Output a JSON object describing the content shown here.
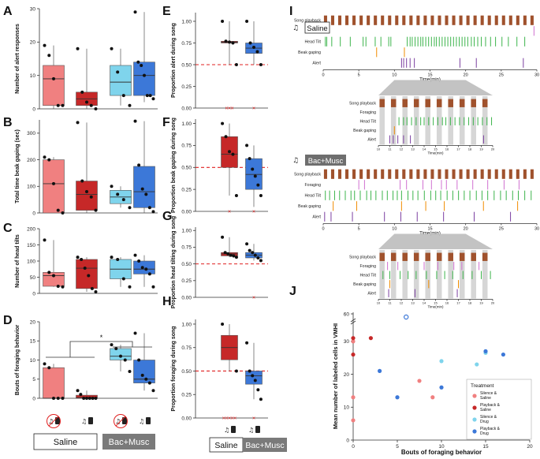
{
  "colors": {
    "silence_saline": "#f08080",
    "playback_saline": "#c62828",
    "silence_drug": "#7fd4ec",
    "playback_drug": "#3c78d8",
    "reference": "#e02020",
    "song": "#a0522d",
    "foraging": "#d070d0",
    "head_tilt": "#3cb44b",
    "beak_gaping": "#f08c00",
    "alert": "#7b3fa0"
  },
  "icons": {
    "silence": "crossed-note-speaker-icon",
    "playback": "note-speaker-icon"
  },
  "panels": {
    "A": "A",
    "B": "B",
    "C": "C",
    "D": "D",
    "E": "E",
    "F": "F",
    "G": "G",
    "H": "H",
    "I": "I",
    "J": "J"
  },
  "groups": {
    "saline": "Saline",
    "bac_musc": "Bac+Musc"
  },
  "chart_data": [
    {
      "panel": "A",
      "type": "box",
      "ylabel": "Number of alert responses",
      "ylim": [
        0,
        30
      ],
      "yticks": [
        0,
        10,
        20,
        30
      ],
      "groups": [
        {
          "treatment": "Silence & Saline",
          "q1": 1,
          "median": 9,
          "q3": 13,
          "whisker": [
            0,
            19
          ],
          "points": [
            19,
            16,
            9,
            1,
            1
          ]
        },
        {
          "treatment": "Playback & Saline",
          "q1": 1,
          "median": 3,
          "q3": 5,
          "whisker": [
            0,
            18
          ],
          "points": [
            18,
            5,
            2,
            1,
            0
          ]
        },
        {
          "treatment": "Silence & Drug",
          "q1": 4,
          "median": 8,
          "q3": 13,
          "whisker": [
            1,
            18
          ],
          "points": [
            18,
            11,
            4,
            1
          ]
        },
        {
          "treatment": "Playback & Drug",
          "q1": 4,
          "median": 10,
          "q3": 14,
          "whisker": [
            2,
            29
          ],
          "points": [
            29,
            14,
            13,
            10,
            4,
            4,
            3
          ]
        }
      ]
    },
    {
      "panel": "B",
      "type": "box",
      "ylabel": "Total time beak gaping (sec)",
      "ylim": [
        0,
        350
      ],
      "yticks": [
        0,
        100,
        200,
        300
      ],
      "groups": [
        {
          "treatment": "Silence & Saline",
          "q1": 0,
          "median": 110,
          "q3": 200,
          "whisker": [
            0,
            210
          ],
          "points": [
            210,
            200,
            110,
            10,
            0
          ]
        },
        {
          "treatment": "Playback & Saline",
          "q1": 10,
          "median": 70,
          "q3": 120,
          "whisker": [
            0,
            340
          ],
          "points": [
            340,
            120,
            80,
            60,
            10
          ]
        },
        {
          "treatment": "Silence & Drug",
          "q1": 35,
          "median": 60,
          "q3": 85,
          "whisker": [
            20,
            100
          ],
          "points": [
            100,
            70,
            50,
            20
          ]
        },
        {
          "treatment": "Playback & Drug",
          "q1": 20,
          "median": 80,
          "q3": 175,
          "whisker": [
            0,
            345
          ],
          "points": [
            345,
            180,
            90,
            70,
            20,
            5
          ]
        }
      ]
    },
    {
      "panel": "C",
      "type": "box",
      "ylabel": "Number of head tilts",
      "ylim": [
        0,
        200
      ],
      "yticks": [
        0,
        50,
        100,
        150,
        200
      ],
      "groups": [
        {
          "treatment": "Silence & Saline",
          "q1": 22,
          "median": 55,
          "q3": 65,
          "whisker": [
            20,
            165
          ],
          "points": [
            165,
            65,
            55,
            22,
            20
          ]
        },
        {
          "treatment": "Playback & Saline",
          "q1": 15,
          "median": 78,
          "q3": 105,
          "whisker": [
            5,
            112
          ],
          "points": [
            112,
            105,
            78,
            55,
            15,
            5
          ]
        },
        {
          "treatment": "Silence & Drug",
          "q1": 45,
          "median": 75,
          "q3": 105,
          "whisker": [
            20,
            112
          ],
          "points": [
            112,
            105,
            45,
            20
          ]
        },
        {
          "treatment": "Playback & Drug",
          "q1": 60,
          "median": 75,
          "q3": 100,
          "whisker": [
            20,
            118
          ],
          "points": [
            118,
            100,
            80,
            75,
            60,
            20
          ]
        }
      ]
    },
    {
      "panel": "D",
      "type": "box",
      "ylabel": "Bouts of foraging behavior",
      "ylim": [
        0,
        20
      ],
      "yticks": [
        0,
        5,
        10,
        15,
        20
      ],
      "significance": "*",
      "groups": [
        {
          "treatment": "Silence & Saline",
          "q1": 0,
          "median": 0,
          "q3": 8,
          "whisker": [
            0,
            9
          ],
          "points": [
            9,
            8,
            0,
            0,
            0
          ]
        },
        {
          "treatment": "Playback & Saline",
          "q1": 0,
          "median": 0.2,
          "q3": 0.8,
          "whisker": [
            0,
            2
          ],
          "points": [
            2,
            1,
            0,
            0,
            0,
            0,
            0
          ]
        },
        {
          "treatment": "Silence & Drug",
          "q1": 10,
          "median": 11,
          "q3": 13,
          "whisker": [
            7,
            14
          ],
          "points": [
            14,
            13,
            11,
            10,
            7
          ]
        },
        {
          "treatment": "Playback & Drug",
          "q1": 4,
          "median": 5,
          "q3": 10,
          "whisker": [
            2,
            17
          ],
          "points": [
            17,
            10,
            6,
            5,
            4,
            2
          ]
        }
      ]
    },
    {
      "panel": "E",
      "type": "box",
      "ylabel": "Proportion alert during song",
      "ylim": [
        0,
        1.1
      ],
      "yticks": [
        0.0,
        0.25,
        0.5,
        0.75,
        1.0
      ],
      "reference": 0.5,
      "groups": [
        {
          "treatment": "Playback & Saline",
          "q1": 0.75,
          "median": 0.76,
          "q3": 0.77,
          "whisker": [
            0.5,
            1.0
          ],
          "points": [
            1.0,
            0.77,
            0.76,
            0.75,
            0.5
          ],
          "excluded": 3
        },
        {
          "treatment": "Playback & Drug",
          "q1": 0.63,
          "median": 0.69,
          "q3": 0.75,
          "whisker": [
            0.5,
            1.0
          ],
          "points": [
            1.0,
            0.75,
            0.7,
            0.65,
            0.5
          ],
          "excluded": 1
        }
      ]
    },
    {
      "panel": "F",
      "type": "box",
      "ylabel": "Proportion beak gaping during song",
      "ylim": [
        0,
        1.05
      ],
      "yticks": [
        0.0,
        0.25,
        0.5,
        0.75,
        1.0
      ],
      "reference": 0.5,
      "groups": [
        {
          "treatment": "Playback & Saline",
          "q1": 0.5,
          "median": 0.65,
          "q3": 0.85,
          "whisker": [
            0.18,
            1.0
          ],
          "points": [
            1.0,
            0.85,
            0.68,
            0.65,
            0.18
          ],
          "excluded": 1
        },
        {
          "treatment": "Playback & Drug",
          "q1": 0.25,
          "median": 0.42,
          "q3": 0.6,
          "whisker": [
            0.05,
            0.75
          ],
          "points": [
            0.75,
            0.6,
            0.48,
            0.4,
            0.3,
            0.18
          ],
          "excluded": 1
        }
      ]
    },
    {
      "panel": "G",
      "type": "box",
      "ylabel": "Proportion head tilting during song",
      "ylim": [
        0,
        1.05
      ],
      "yticks": [
        0.0,
        0.25,
        0.5,
        0.75,
        1.0
      ],
      "reference": 0.5,
      "groups": [
        {
          "treatment": "Playback & Saline",
          "q1": 0.62,
          "median": 0.65,
          "q3": 0.67,
          "whisker": [
            0.6,
            0.9
          ],
          "points": [
            0.9,
            0.67,
            0.65,
            0.63,
            0.62,
            0.6
          ],
          "excluded": 0
        },
        {
          "treatment": "Playback & Drug",
          "q1": 0.59,
          "median": 0.63,
          "q3": 0.67,
          "whisker": [
            0.55,
            0.8
          ],
          "points": [
            0.8,
            0.7,
            0.67,
            0.63,
            0.59,
            0.55
          ],
          "excluded": 1
        }
      ]
    },
    {
      "panel": "H",
      "type": "box",
      "ylabel": "Proportion foraging during song",
      "ylim": [
        0,
        1.05
      ],
      "yticks": [
        0.0,
        0.25,
        0.5,
        0.75,
        1.0
      ],
      "reference": 0.5,
      "groups": [
        {
          "treatment": "Playback & Saline",
          "q1": 0.62,
          "median": 0.75,
          "q3": 0.88,
          "whisker": [
            0.5,
            1.0
          ],
          "points": [
            1.0,
            0.5
          ],
          "excluded": 5
        },
        {
          "treatment": "Playback & Drug",
          "q1": 0.36,
          "median": 0.45,
          "q3": 0.5,
          "whisker": [
            0.2,
            0.8
          ],
          "points": [
            0.8,
            0.5,
            0.45,
            0.4,
            0.3,
            0.2
          ],
          "excluded": 1
        }
      ]
    },
    {
      "panel": "J",
      "type": "scatter",
      "xlabel": "Bouts of foraging behavior",
      "ylabel": "Mean number of labeled cells in VMHI",
      "xlim": [
        0,
        20
      ],
      "xticks": [
        0,
        5,
        10,
        15,
        20
      ],
      "ylim": [
        0,
        35
      ],
      "yticks": [
        0,
        10,
        20,
        30
      ],
      "break_tick": 60,
      "legend_title": "Treatment",
      "legend_position": "bottom-right",
      "series": [
        {
          "name": "Silence & Saline",
          "points": [
            [
              0,
              6
            ],
            [
              0,
              13
            ],
            [
              0,
              30
            ],
            [
              7.5,
              18
            ],
            [
              9,
              13
            ]
          ]
        },
        {
          "name": "Playback & Saline",
          "points": [
            [
              0,
              31
            ],
            [
              0,
              26
            ],
            [
              2,
              31
            ]
          ]
        },
        {
          "name": "Silence & Drug",
          "points": [
            [
              10,
              24
            ],
            [
              14,
              23
            ],
            [
              15,
              26.5
            ]
          ]
        },
        {
          "name": "Playback & Drug",
          "points": [
            [
              3,
              21
            ],
            [
              5,
              13
            ],
            [
              10,
              16
            ],
            [
              15,
              27
            ],
            [
              17,
              26
            ]
          ]
        }
      ],
      "outlier": {
        "x": 6,
        "y": 60
      }
    }
  ],
  "timeline": {
    "xlabel": "Time(min)",
    "xticks": [
      0,
      5,
      10,
      15,
      20,
      25,
      30
    ],
    "zoom_xticks": [
      10,
      11,
      12,
      13,
      14,
      15,
      16,
      17,
      18,
      19,
      20
    ],
    "rows": [
      "Song playback",
      "Foraging",
      "Head Tilt",
      "Beak gaping",
      "Alert"
    ],
    "saline": {
      "foraging": [
        29.6
      ],
      "head_tilt": [
        0.3,
        0.5,
        1.2,
        2.4,
        3.8,
        5.6,
        6.0,
        7.3,
        8.1,
        9.2,
        9.5,
        11.8,
        12.2,
        12.5,
        12.9,
        13.3,
        13.7,
        14.0,
        14.4,
        14.8,
        15.2,
        15.6,
        15.9,
        16.3,
        16.7,
        17.1,
        17.5,
        17.9,
        18.3,
        18.7,
        19.1,
        19.5,
        19.9,
        20.3,
        20.8,
        21.2,
        21.7,
        22.2,
        22.8,
        23.5,
        24.2,
        25.1,
        26.0,
        27.2,
        28.3
      ],
      "beak_gaping": [
        7.5,
        11.4
      ],
      "alert": [
        11.0,
        11.3,
        11.7,
        12.2,
        12.8,
        19.2,
        21.5,
        28.1
      ]
    },
    "bac_musc": {
      "foraging": [
        5.0,
        5.8,
        10.8,
        11.7,
        14.0,
        15.2,
        16.6,
        17.3,
        18.8,
        21.0,
        23.1,
        25.4,
        27.5
      ],
      "head_tilt": [
        0.3,
        0.9,
        1.6,
        2.3,
        3.1,
        3.9,
        4.4,
        5.2,
        6.1,
        6.7,
        7.4,
        8.3,
        9.0,
        9.8,
        10.4,
        11.0,
        11.9,
        12.6,
        13.3,
        14.2,
        15.1,
        15.8,
        16.5,
        17.4,
        18.2,
        19.0,
        19.8,
        20.6,
        21.5,
        22.3,
        23.1,
        24.0,
        24.9,
        25.7,
        26.6,
        27.4,
        28.3,
        29.2
      ],
      "beak_gaping": [
        1.4,
        4.7,
        11.0,
        14.4,
        17.0,
        22.5,
        27.3
      ],
      "alert": [
        0.2,
        1.1,
        4.1,
        8.6,
        10.9,
        13.2,
        16.9,
        21.2,
        26.3
      ]
    }
  }
}
